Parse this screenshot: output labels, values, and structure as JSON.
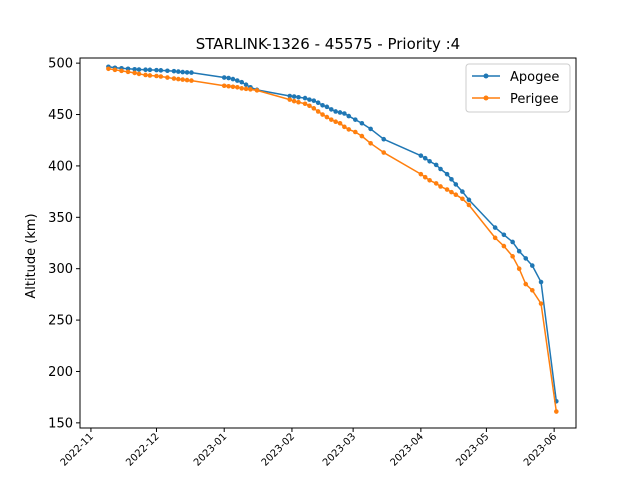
{
  "chart_data": {
    "type": "line",
    "title": "STARLINK-1326 - 45575 - Priority :4",
    "xlabel": "",
    "ylabel": "Altitude (km)",
    "ylim": [
      145,
      505
    ],
    "xlim": [
      "2022-10-27",
      "2023-06-11"
    ],
    "grid": false,
    "legend_position": "top-right",
    "yticks": [
      150,
      200,
      250,
      300,
      350,
      400,
      450,
      500
    ],
    "xticks": [
      "2022-11-01",
      "2022-12-01",
      "2023-01-01",
      "2023-02-01",
      "2023-03-01",
      "2023-04-01",
      "2023-05-01",
      "2023-06-01"
    ],
    "xtick_labels": [
      "2022-11",
      "2022-12",
      "2023-01",
      "2023-02",
      "2023-03",
      "2023-04",
      "2023-05",
      "2023-06"
    ],
    "series": [
      {
        "name": "Apogee",
        "color": "#1f77b4",
        "x": [
          "2022-11-09",
          "2022-11-12",
          "2022-11-15",
          "2022-11-18",
          "2022-11-21",
          "2022-11-23",
          "2022-11-26",
          "2022-11-28",
          "2022-12-01",
          "2022-12-03",
          "2022-12-06",
          "2022-12-09",
          "2022-12-11",
          "2022-12-13",
          "2022-12-15",
          "2022-12-17",
          "2023-01-01",
          "2023-01-03",
          "2023-01-05",
          "2023-01-07",
          "2023-01-09",
          "2023-01-11",
          "2023-01-13",
          "2023-01-16",
          "2023-01-31",
          "2023-02-02",
          "2023-02-04",
          "2023-02-07",
          "2023-02-09",
          "2023-02-11",
          "2023-02-13",
          "2023-02-15",
          "2023-02-17",
          "2023-02-19",
          "2023-02-21",
          "2023-02-23",
          "2023-02-25",
          "2023-02-27",
          "2023-03-02",
          "2023-03-05",
          "2023-03-09",
          "2023-03-15",
          "2023-04-01",
          "2023-04-03",
          "2023-04-05",
          "2023-04-08",
          "2023-04-10",
          "2023-04-13",
          "2023-04-15",
          "2023-04-17",
          "2023-04-20",
          "2023-04-23",
          "2023-05-05",
          "2023-05-09",
          "2023-05-13",
          "2023-05-16",
          "2023-05-19",
          "2023-05-22",
          "2023-05-26",
          "2023-06-02"
        ],
        "values": [
          496.5,
          495.5,
          495,
          494.5,
          494,
          493.8,
          493.6,
          493.5,
          493.2,
          493,
          492.6,
          492.2,
          491.8,
          491.3,
          491,
          490.8,
          486,
          485.5,
          484.5,
          483,
          481.5,
          479,
          476.5,
          474,
          468,
          467.5,
          466.8,
          466,
          464.5,
          463.5,
          461.5,
          459,
          457.5,
          455,
          453,
          452,
          451,
          448.5,
          445,
          441.5,
          436,
          426,
          410,
          407.5,
          404.5,
          401,
          397,
          392,
          387,
          382,
          375,
          367,
          340,
          333,
          326,
          317,
          310,
          303,
          287,
          171
        ]
      },
      {
        "name": "Perigee",
        "color": "#ff7f0e",
        "x": [
          "2022-11-09",
          "2022-11-12",
          "2022-11-15",
          "2022-11-18",
          "2022-11-21",
          "2022-11-23",
          "2022-11-26",
          "2022-11-28",
          "2022-12-01",
          "2022-12-03",
          "2022-12-06",
          "2022-12-09",
          "2022-12-11",
          "2022-12-13",
          "2022-12-15",
          "2022-12-17",
          "2023-01-01",
          "2023-01-03",
          "2023-01-05",
          "2023-01-07",
          "2023-01-09",
          "2023-01-11",
          "2023-01-13",
          "2023-01-16",
          "2023-01-31",
          "2023-02-02",
          "2023-02-04",
          "2023-02-07",
          "2023-02-09",
          "2023-02-11",
          "2023-02-13",
          "2023-02-15",
          "2023-02-17",
          "2023-02-19",
          "2023-02-21",
          "2023-02-23",
          "2023-02-25",
          "2023-02-27",
          "2023-03-02",
          "2023-03-05",
          "2023-03-09",
          "2023-03-15",
          "2023-04-01",
          "2023-04-03",
          "2023-04-05",
          "2023-04-08",
          "2023-04-10",
          "2023-04-13",
          "2023-04-15",
          "2023-04-17",
          "2023-04-20",
          "2023-04-23",
          "2023-05-05",
          "2023-05-09",
          "2023-05-13",
          "2023-05-16",
          "2023-05-19",
          "2023-05-22",
          "2023-05-26",
          "2023-06-02"
        ],
        "values": [
          494.5,
          493.5,
          492.5,
          491.5,
          490.5,
          489.5,
          488.5,
          488,
          487.5,
          487,
          486,
          485,
          484.5,
          484,
          483.5,
          483,
          478,
          477.5,
          477,
          476.5,
          475.5,
          475,
          474.5,
          473.5,
          464.5,
          463,
          462,
          460.5,
          458.5,
          456,
          453,
          450,
          447.5,
          445,
          443,
          441.5,
          438,
          435.5,
          433,
          429,
          422,
          413,
          392,
          389,
          386,
          383,
          380,
          377,
          374.5,
          372,
          368,
          362,
          330,
          322,
          312,
          300,
          285,
          279,
          266,
          161
        ]
      }
    ]
  }
}
